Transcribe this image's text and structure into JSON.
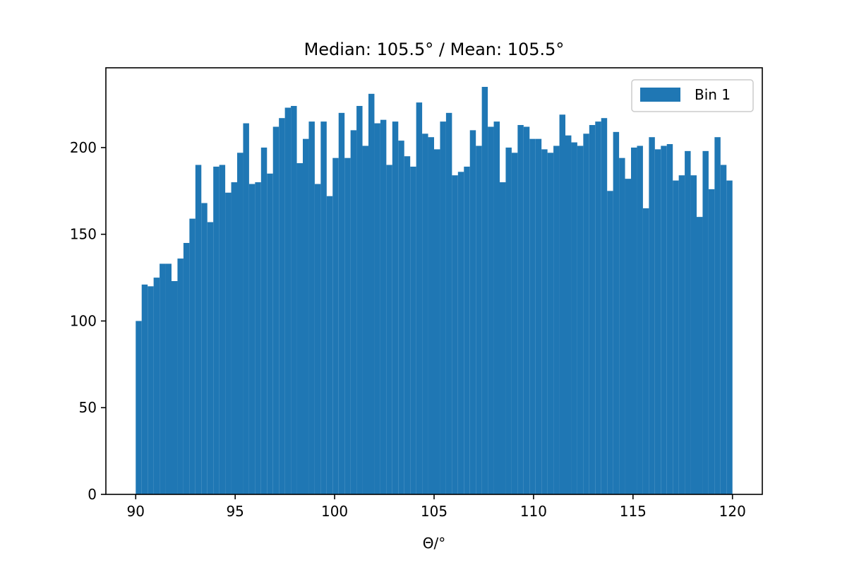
{
  "chart_data": {
    "type": "bar",
    "title": "Median: 105.5° / Mean: 105.5°",
    "xlabel": "Θ/°",
    "ylabel": "",
    "xlim": [
      88.5,
      121.5
    ],
    "ylim": [
      0,
      246
    ],
    "grid": false,
    "legend_position": "top-right",
    "x_ticks": [
      90,
      95,
      100,
      105,
      110,
      115,
      120
    ],
    "x_tick_labels": [
      "90",
      "95",
      "100",
      "105",
      "110",
      "115",
      "120"
    ],
    "y_ticks": [
      0,
      50,
      100,
      150,
      200
    ],
    "y_tick_labels": [
      "0",
      "50",
      "100",
      "150",
      "200"
    ],
    "bin_edges_start": 90,
    "bin_width": 0.3,
    "series": [
      {
        "name": "Bin 1",
        "color": "#1f77b4",
        "values": [
          100,
          121,
          120,
          125,
          133,
          133,
          123,
          136,
          145,
          159,
          190,
          168,
          157,
          189,
          190,
          174,
          180,
          197,
          214,
          179,
          180,
          200,
          185,
          212,
          217,
          223,
          224,
          191,
          205,
          215,
          179,
          215,
          172,
          194,
          220,
          194,
          210,
          224,
          201,
          231,
          214,
          216,
          190,
          215,
          204,
          195,
          189,
          226,
          208,
          206,
          199,
          215,
          220,
          184,
          186,
          189,
          210,
          201,
          235,
          212,
          215,
          180,
          200,
          197,
          213,
          212,
          205,
          205,
          199,
          197,
          201,
          219,
          207,
          203,
          201,
          208,
          213,
          215,
          217,
          175,
          209,
          194,
          182,
          200,
          201,
          165,
          206,
          199,
          201,
          202,
          181,
          184,
          198,
          184,
          160,
          198,
          176,
          206,
          190,
          181
        ]
      }
    ]
  }
}
